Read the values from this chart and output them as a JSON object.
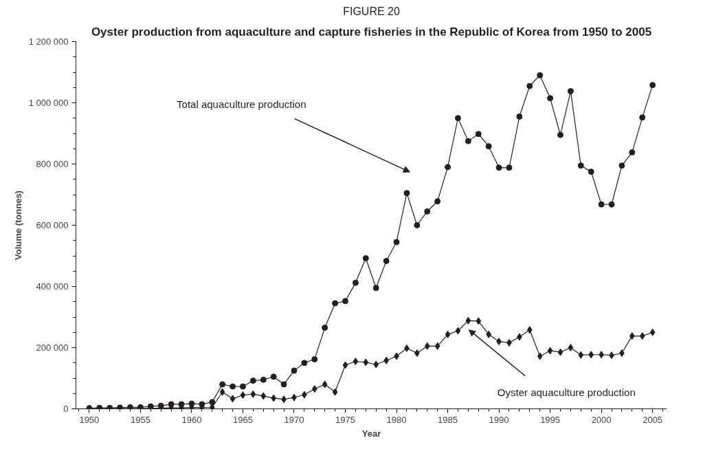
{
  "chart_data": {
    "type": "line",
    "title": "FIGURE 20",
    "subtitle": "Oyster production from aquaculture and capture fisheries in the Republic of Korea from 1950 to 2005",
    "xlabel": "Year",
    "ylabel": "Volume (tonnes)",
    "x": [
      1950,
      1951,
      1952,
      1953,
      1954,
      1955,
      1956,
      1957,
      1958,
      1959,
      1960,
      1961,
      1962,
      1963,
      1964,
      1965,
      1966,
      1967,
      1968,
      1969,
      1970,
      1971,
      1972,
      1973,
      1974,
      1975,
      1976,
      1977,
      1978,
      1979,
      1980,
      1981,
      1982,
      1983,
      1984,
      1985,
      1986,
      1987,
      1988,
      1989,
      1990,
      1991,
      1992,
      1993,
      1994,
      1995,
      1996,
      1997,
      1998,
      1999,
      2000,
      2001,
      2002,
      2003,
      2004,
      2005
    ],
    "series": [
      {
        "color": "#231f20",
        "marker": "circle",
        "values": [
          2000,
          3000,
          3000,
          4000,
          5000,
          5000,
          8000,
          10000,
          15000,
          15000,
          17000,
          15000,
          22000,
          80000,
          73000,
          73000,
          92000,
          95000,
          105000,
          80000,
          125000,
          150000,
          162000,
          265000,
          345000,
          352000,
          412000,
          492000,
          395000,
          483000,
          545000,
          705000,
          600000,
          645000,
          678000,
          790000,
          950000,
          875000,
          898000,
          858000,
          788000,
          788000,
          955000,
          1055000,
          1090000,
          1015000,
          895000,
          1038000,
          795000,
          775000,
          668000,
          668000,
          795000,
          838000,
          952000,
          1058000
        ]
      },
      {
        "color": "#231f20",
        "marker": "diamond",
        "values": [
          1000,
          1000,
          1000,
          1000,
          1000,
          1000,
          2000,
          2000,
          3000,
          3000,
          4000,
          4000,
          5000,
          55000,
          33000,
          45000,
          48000,
          42000,
          35000,
          31000,
          37000,
          46000,
          65000,
          80000,
          55000,
          143000,
          155000,
          152000,
          145000,
          158000,
          172000,
          198000,
          182000,
          205000,
          205000,
          243000,
          255000,
          288000,
          287000,
          243000,
          220000,
          216000,
          235000,
          258000,
          172000,
          190000,
          185000,
          200000,
          176000,
          177000,
          177000,
          175000,
          182000,
          238000,
          238000,
          250000
        ]
      }
    ],
    "xlim": [
      1948.7,
      2006.4
    ],
    "xticks": [
      1950,
      1955,
      1960,
      1965,
      1970,
      1975,
      1980,
      1985,
      1990,
      1995,
      2000,
      2005
    ],
    "ylim": [
      0,
      1200000
    ],
    "yticks": [
      0,
      {
        "value": 200000,
        "label": "200 000"
      },
      {
        "value": 400000,
        "label": "400 000"
      },
      {
        "value": 600000,
        "label": "600 000"
      },
      {
        "value": 800000,
        "label": "800 000"
      },
      {
        "value": 1000000,
        "label": "1 000 000"
      },
      {
        "value": 1200000,
        "label": "1 200 000"
      }
    ],
    "annotations": [
      "Total aquaculture production",
      "Oyster aquaculture production"
    ],
    "grid": false,
    "line_style": "solid"
  }
}
